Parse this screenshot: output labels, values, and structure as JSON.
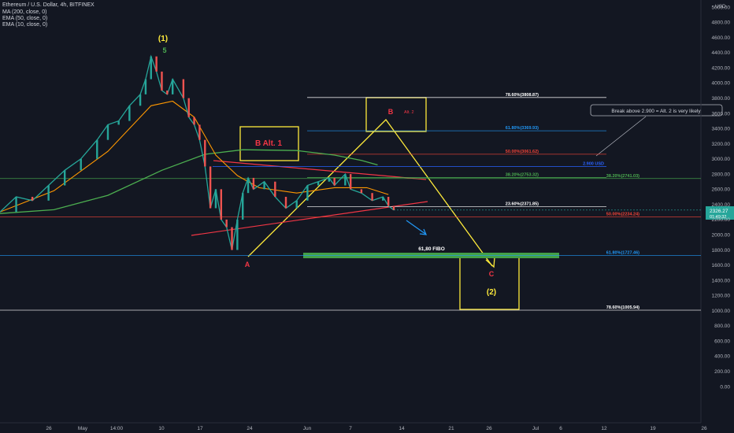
{
  "legend": {
    "symbol": "Ethereum / U.S. Dollar, 4h, BITFINEX",
    "ma200": "MA (200, close, 0)",
    "ema50": "EMA (50, close, 0)",
    "ema10": "EMA (10, close, 0)"
  },
  "currency": "USD",
  "chart_data": {
    "type": "line",
    "yaxis_ticks": [
      "5000.00",
      "4800.00",
      "4600.00",
      "4400.00",
      "4200.00",
      "4000.00",
      "3800.00",
      "3600.00",
      "3400.00",
      "3200.00",
      "3000.00",
      "2800.00",
      "2600.00",
      "2400.00",
      "2200.00",
      "2000.00",
      "1800.00",
      "1600.00",
      "1400.00",
      "1200.00",
      "1000.00",
      "800.00",
      "600.00",
      "400.00",
      "200.00",
      "0.00"
    ],
    "xaxis_ticks": [
      "26",
      "May",
      "14:00",
      "10",
      "17",
      "24",
      "Jun",
      "7",
      "14",
      "21",
      "26",
      "Jul",
      "6",
      "12",
      "19",
      "26"
    ],
    "ylim": [
      -100,
      5100
    ],
    "price": {
      "last": "2326.27",
      "countdown": "01:49:32",
      "color": "#26a69a"
    },
    "colors": {
      "ma200": "#4caf50",
      "ema50": "#ff9800",
      "ema10": "#e53935",
      "fib": "#ffffff",
      "annot": "#ffeb3b",
      "trend": "#f23645",
      "blue": "#2962ff",
      "green": "#43a047"
    },
    "price_path": [
      [
        0,
        2300
      ],
      [
        3,
        2500
      ],
      [
        6,
        2450
      ],
      [
        9,
        2650
      ],
      [
        12,
        2850
      ],
      [
        15,
        3000
      ],
      [
        18,
        3250
      ],
      [
        20,
        3450
      ],
      [
        22,
        3500
      ],
      [
        24,
        3700
      ],
      [
        26,
        3850
      ],
      [
        27,
        4050
      ],
      [
        28,
        4350
      ],
      [
        29,
        4150
      ],
      [
        30,
        3900
      ],
      [
        31,
        3850
      ],
      [
        32,
        4050
      ],
      [
        34,
        3800
      ],
      [
        35,
        3550
      ],
      [
        36,
        3450
      ],
      [
        37,
        3250
      ],
      [
        38,
        2900
      ],
      [
        39,
        2350
      ],
      [
        40,
        2600
      ],
      [
        41,
        2200
      ],
      [
        42,
        2100
      ],
      [
        43,
        1800
      ],
      [
        44,
        2200
      ],
      [
        45,
        2550
      ],
      [
        46,
        2750
      ],
      [
        47,
        2600
      ],
      [
        49,
        2700
      ],
      [
        51,
        2500
      ],
      [
        53,
        2350
      ],
      [
        55,
        2450
      ],
      [
        57,
        2650
      ],
      [
        59,
        2700
      ],
      [
        61,
        2750
      ],
      [
        62,
        2650
      ],
      [
        64,
        2800
      ],
      [
        65,
        2600
      ],
      [
        67,
        2550
      ],
      [
        69,
        2450
      ],
      [
        71,
        2500
      ],
      [
        72,
        2380
      ],
      [
        73,
        2326
      ]
    ],
    "ma200_path": [
      [
        0,
        2280
      ],
      [
        10,
        2330
      ],
      [
        20,
        2520
      ],
      [
        30,
        2850
      ],
      [
        38,
        3060
      ],
      [
        45,
        3120
      ],
      [
        55,
        3110
      ],
      [
        62,
        3050
      ],
      [
        67,
        2980
      ],
      [
        70,
        2920
      ]
    ],
    "ema50_path": [
      [
        0,
        2300
      ],
      [
        10,
        2580
      ],
      [
        20,
        3100
      ],
      [
        28,
        3700
      ],
      [
        32,
        3760
      ],
      [
        36,
        3550
      ],
      [
        40,
        3050
      ],
      [
        44,
        2780
      ],
      [
        48,
        2620
      ],
      [
        55,
        2550
      ],
      [
        62,
        2620
      ],
      [
        68,
        2620
      ],
      [
        72,
        2530
      ]
    ],
    "fib_levels": [
      {
        "label": "78.60%(3808.87)",
        "value": 3808.87,
        "color": "#ffffff",
        "x1": 55,
        "x2": 90
      },
      {
        "label": "61.80%(3369.93)",
        "value": 3369.93,
        "color": "#2196f3",
        "x1": 55,
        "x2": 90
      },
      {
        "label": "50.00%(3061.62)",
        "value": 3061.62,
        "color": "#f44336",
        "x1": 55,
        "x2": 90
      },
      {
        "label": "2.900 USD",
        "value": 2900,
        "color": "#2962ff",
        "x1": 0,
        "x2": 120
      },
      {
        "label": "38.20%(2753.32)",
        "value": 2753.32,
        "color": "#4caf50",
        "x1": 55,
        "x2": 90
      },
      {
        "label": "38.20%(2741.03)",
        "value": 2741.03,
        "color": "#4caf50",
        "x1": 0,
        "x2": 130
      },
      {
        "label": "23.60%(2371.85)",
        "value": 2371.85,
        "color": "#ffffff",
        "x1": 55,
        "x2": 90
      },
      {
        "label": "50.00%(2234.24)",
        "value": 2234.24,
        "color": "#f44336",
        "x1": 0,
        "x2": 130
      },
      {
        "label": "61.80%(1727.46)",
        "value": 1727.46,
        "color": "#2196f3",
        "x1": 0,
        "x2": 130
      },
      {
        "label": "78.60%(1005.94)",
        "value": 1005.94,
        "color": "#ffffff",
        "x1": 0,
        "x2": 130
      }
    ],
    "annotations": {
      "wave1": "(1)",
      "wave5": "5",
      "waveA": "A",
      "waveB": "B",
      "altB": "Alt. 2",
      "balt1": "B Alt. 1",
      "waveC": "C",
      "wave2": "(2)",
      "fibo": "61,80 FIBO",
      "callout": "Break above 2.900 = Alt.  2 is very likely"
    }
  }
}
